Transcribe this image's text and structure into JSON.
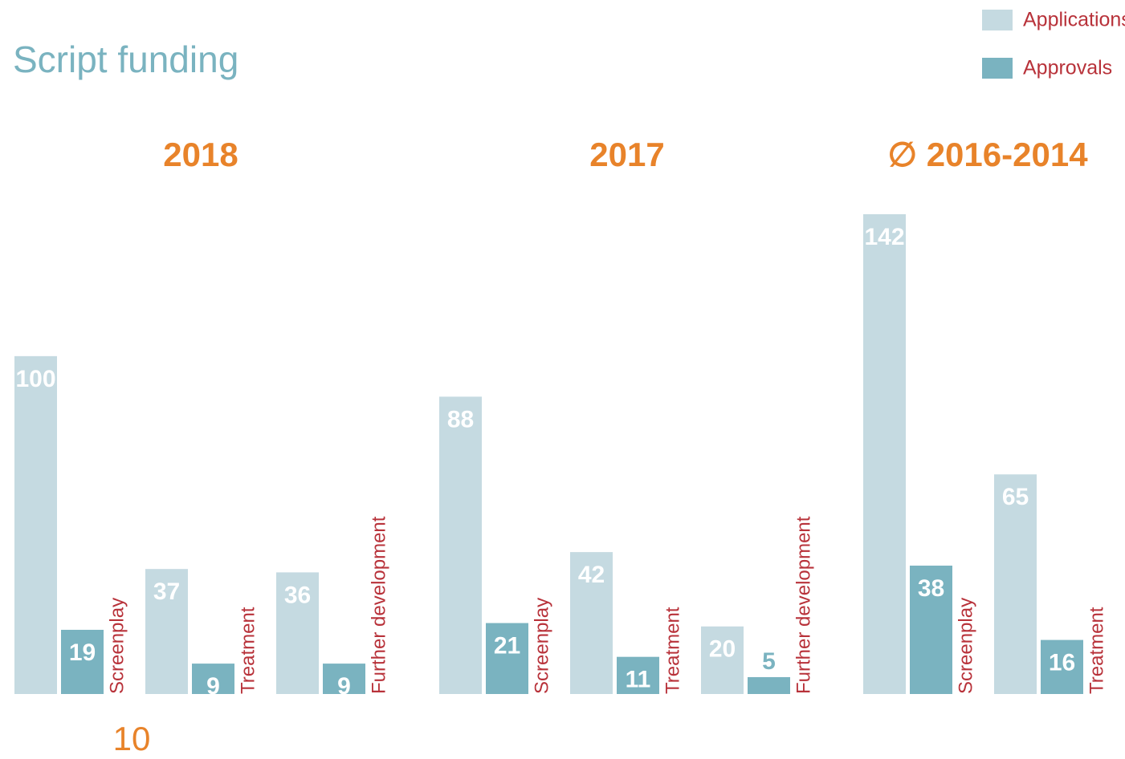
{
  "title": "Script funding",
  "page_number": "10",
  "chart_data": [
    {
      "type": "bar",
      "title": "2018",
      "categories": [
        "Screenplay",
        "Treatment",
        "Further development"
      ],
      "series": [
        {
          "name": "Applications",
          "color": "#c5dae1",
          "values": [
            100,
            37,
            36
          ]
        },
        {
          "name": "Approvals",
          "color": "#7ab3c0",
          "values": [
            19,
            9,
            9
          ]
        }
      ]
    },
    {
      "type": "bar",
      "title": "2017",
      "categories": [
        "Screenplay",
        "Treatment",
        "Further development"
      ],
      "series": [
        {
          "name": "Applications",
          "color": "#c5dae1",
          "values": [
            88,
            42,
            20
          ]
        },
        {
          "name": "Approvals",
          "color": "#7ab3c0",
          "values": [
            21,
            11,
            5
          ]
        }
      ]
    },
    {
      "type": "bar",
      "title": "∅ 2016-2014",
      "categories": [
        "Screenplay",
        "Treatment"
      ],
      "series": [
        {
          "name": "Applications",
          "color": "#c5dae1",
          "values": [
            142,
            65
          ]
        },
        {
          "name": "Approvals",
          "color": "#7ab3c0",
          "values": [
            38,
            16
          ]
        }
      ]
    }
  ]
}
